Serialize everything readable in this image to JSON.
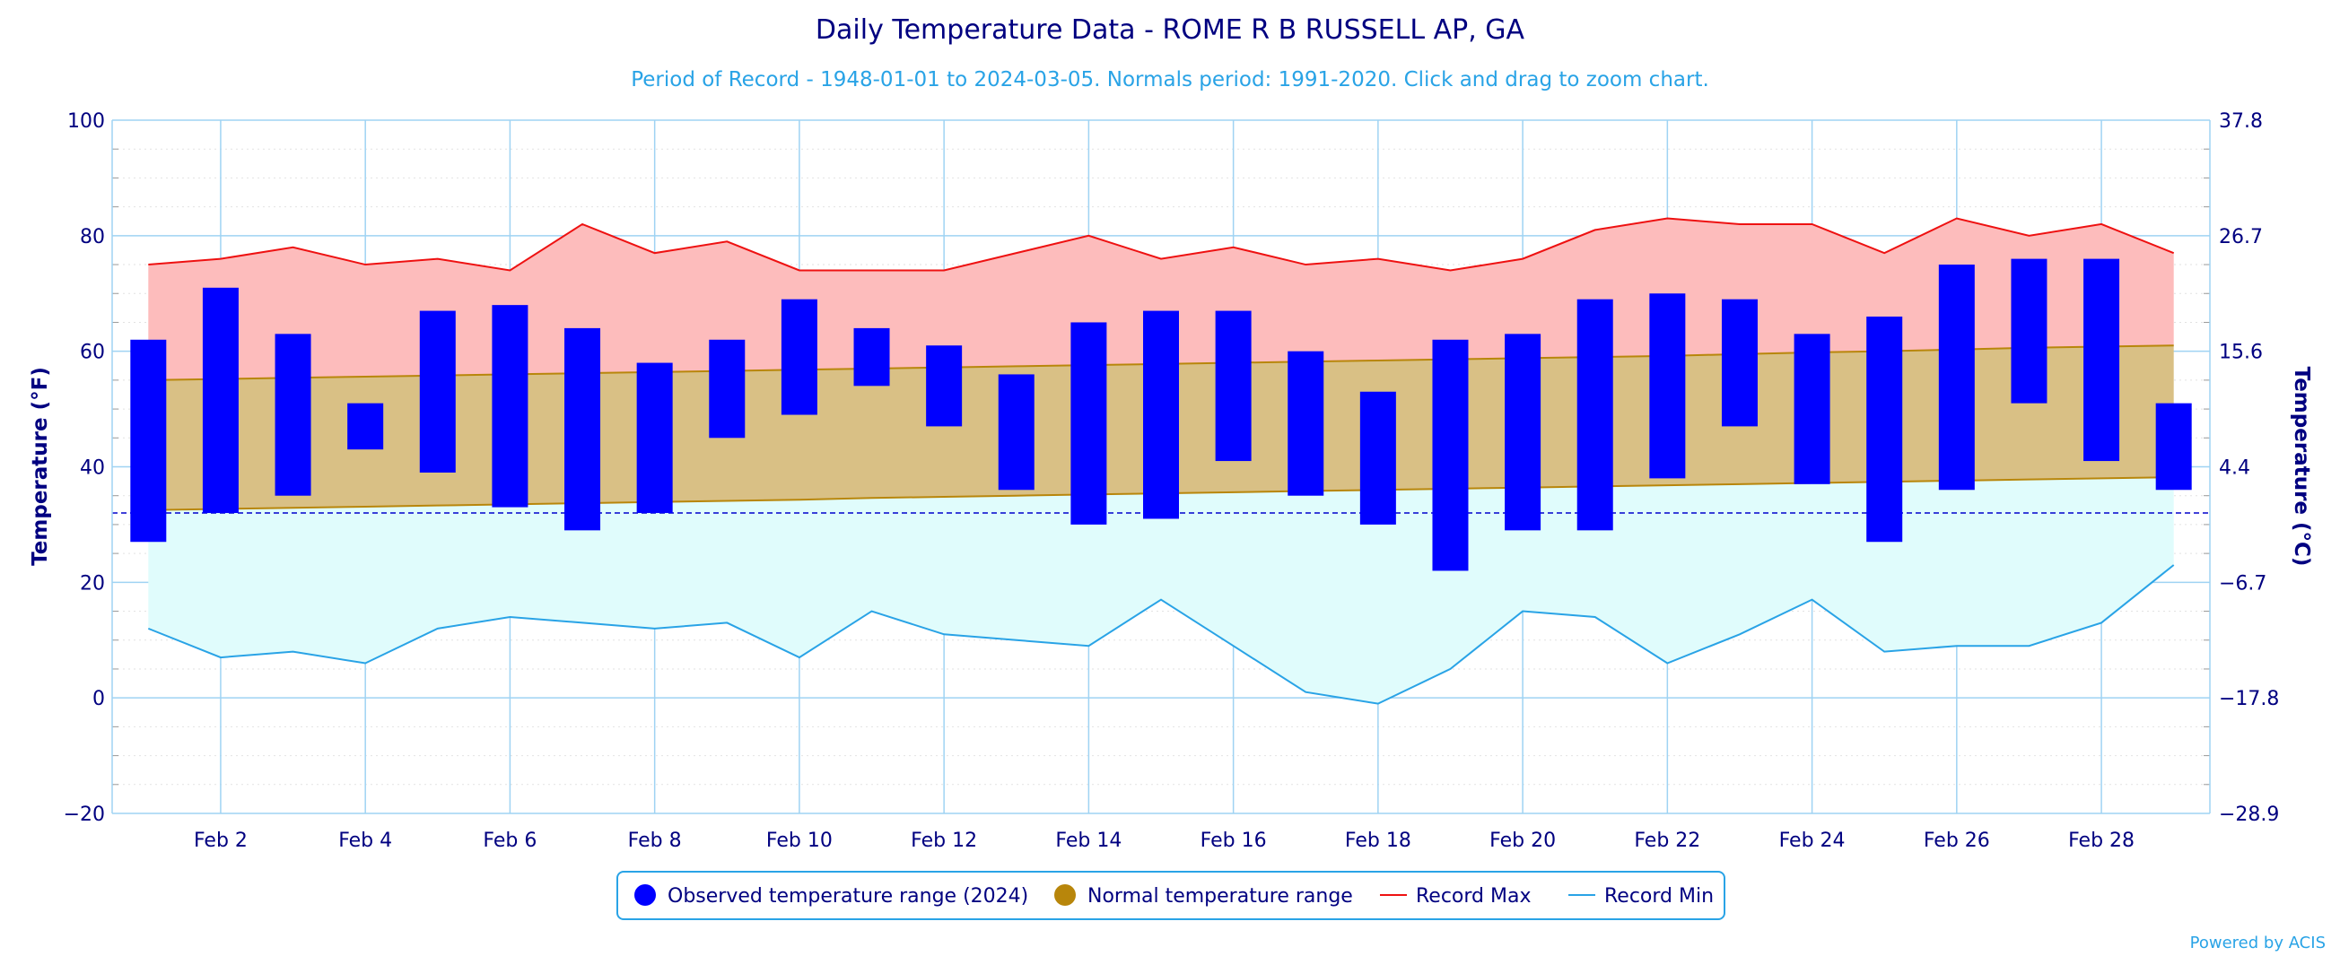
{
  "chart_data": {
    "type": "bar",
    "title": "Daily Temperature Data - ROME R B RUSSELL AP, GA",
    "subtitle": "Period of Record - 1948-01-01 to 2024-03-05. Normals period: 1991-2020. Click and drag to zoom chart.",
    "ylabel_left": "Temperature (°F)",
    "ylabel_right": "Temperature (°C)",
    "ylim": [
      -20,
      100
    ],
    "y_ticks_left": [
      "100",
      "80",
      "60",
      "40",
      "20",
      "0",
      "−20"
    ],
    "y_ticks_right": [
      "37.8",
      "26.7",
      "15.6",
      "4.4",
      "−6.7",
      "−17.8",
      "−28.9"
    ],
    "x_tick_labels": [
      "Feb 2",
      "Feb 4",
      "Feb 6",
      "Feb 8",
      "Feb 10",
      "Feb 12",
      "Feb 14",
      "Feb 16",
      "Feb 18",
      "Feb 20",
      "Feb 22",
      "Feb 24",
      "Feb 26",
      "Feb 28"
    ],
    "freezing_line": 32,
    "days": [
      1,
      2,
      3,
      4,
      5,
      6,
      7,
      8,
      9,
      10,
      11,
      12,
      13,
      14,
      15,
      16,
      17,
      18,
      19,
      20,
      21,
      22,
      23,
      24,
      25,
      26,
      27,
      28,
      29
    ],
    "series": [
      {
        "name": "Observed temperature range (2024)",
        "color": "#0000ff",
        "low": [
          27,
          32,
          35,
          43,
          39,
          33,
          29,
          32,
          45,
          49,
          54,
          47,
          36,
          30,
          31,
          41,
          35,
          30,
          22,
          29,
          29,
          38,
          47,
          37,
          27,
          36,
          51,
          41,
          36
        ],
        "high": [
          62,
          71,
          63,
          51,
          67,
          68,
          64,
          58,
          62,
          69,
          64,
          61,
          56,
          65,
          67,
          67,
          60,
          53,
          62,
          63,
          69,
          70,
          69,
          63,
          66,
          75,
          76,
          76,
          51
        ]
      },
      {
        "name": "Normal temperature range",
        "color": "#b8860b",
        "low": [
          32.5,
          32.7,
          32.9,
          33.1,
          33.3,
          33.5,
          33.7,
          33.9,
          34.1,
          34.3,
          34.6,
          34.8,
          35.0,
          35.2,
          35.4,
          35.6,
          35.8,
          36.0,
          36.2,
          36.4,
          36.6,
          36.8,
          37.0,
          37.2,
          37.4,
          37.6,
          37.8,
          38.0,
          38.2
        ],
        "high": [
          55.0,
          55.2,
          55.4,
          55.6,
          55.8,
          56.0,
          56.2,
          56.4,
          56.6,
          56.8,
          57.0,
          57.2,
          57.4,
          57.6,
          57.8,
          58.0,
          58.2,
          58.4,
          58.6,
          58.8,
          59.0,
          59.2,
          59.5,
          59.8,
          60.0,
          60.3,
          60.6,
          60.8,
          61.0
        ]
      },
      {
        "name": "Record Max",
        "color": "#ee1111",
        "values": [
          75,
          76,
          78,
          75,
          76,
          74,
          82,
          77,
          79,
          74,
          74,
          74,
          77,
          80,
          76,
          78,
          75,
          76,
          74,
          76,
          81,
          83,
          82,
          82,
          77,
          83,
          80,
          82,
          77
        ]
      },
      {
        "name": "Record Min",
        "color": "#29a3e6",
        "values": [
          12,
          7,
          8,
          6,
          12,
          14,
          13,
          12,
          13,
          7,
          15,
          11,
          10,
          9,
          17,
          9,
          1,
          -1,
          5,
          15,
          14,
          6,
          11,
          17,
          8,
          9,
          9,
          13,
          23
        ]
      }
    ]
  },
  "legend": {
    "observed": "Observed temperature range (2024)",
    "normal": "Normal temperature range",
    "record_max": "Record Max",
    "record_min": "Record Min"
  },
  "credit": "Powered by ACIS",
  "colors": {
    "title": "#000080",
    "subtitle": "#29a3e6",
    "grid": "#9fd3f3",
    "record_max_fill": "#fdbcbc",
    "normal_fill": "#d9c085",
    "record_min_fill": "#e0fcfc",
    "freeze_line": "#0000cc"
  }
}
